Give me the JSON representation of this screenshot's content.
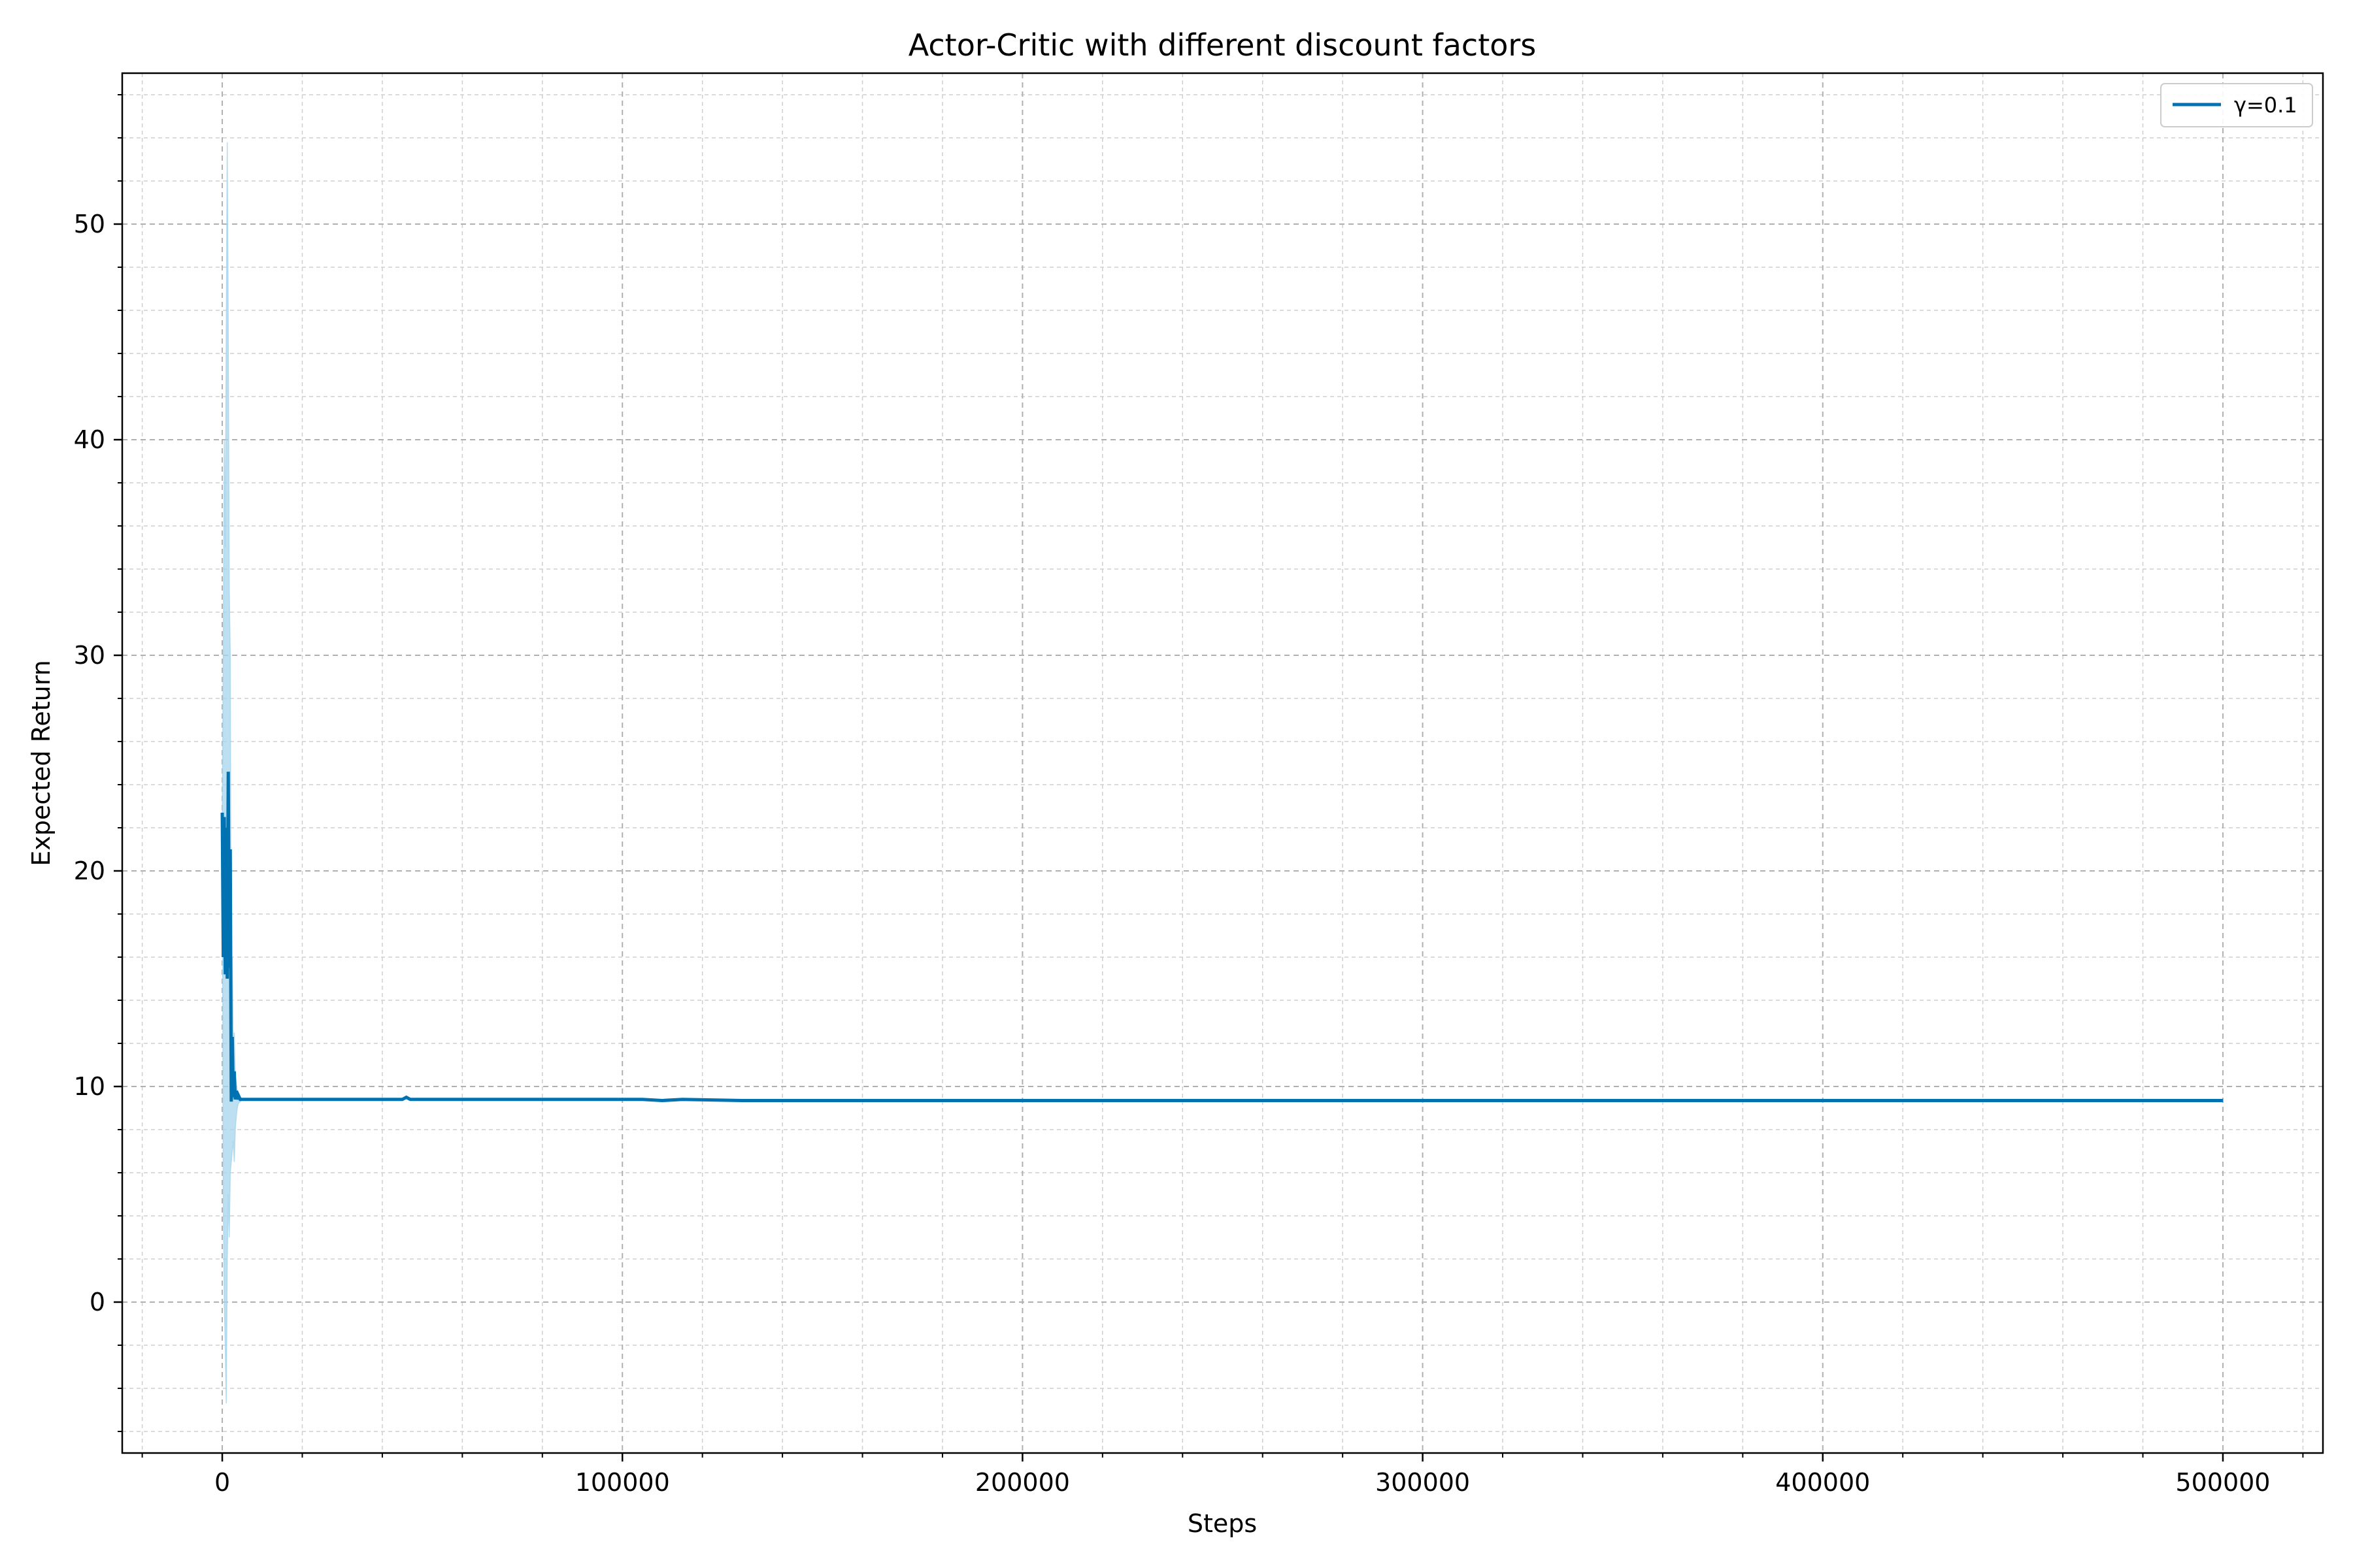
{
  "chart_data": {
    "type": "line",
    "title": "Actor-Critic with different discount factors",
    "xlabel": "Steps",
    "ylabel": "Expected Return",
    "xlim": [
      -25000,
      525000
    ],
    "ylim": [
      -7,
      57
    ],
    "x_ticks": [
      0,
      100000,
      200000,
      300000,
      400000,
      500000
    ],
    "y_ticks": [
      0,
      10,
      20,
      30,
      40,
      50
    ],
    "grid": true,
    "minor_grid": true,
    "legend_position": "top-right",
    "series": [
      {
        "name": "γ=0.1",
        "color": "#0072b2",
        "band_color": "#a6d4ec",
        "x": [
          0,
          250,
          500,
          750,
          1000,
          1250,
          1500,
          1750,
          2000,
          2250,
          2500,
          2750,
          3000,
          3250,
          3500,
          3750,
          4000,
          4500,
          5000,
          6000,
          8000,
          20000,
          40000,
          45000,
          46000,
          47000,
          60000,
          100000,
          105000,
          110000,
          115000,
          130000,
          200000,
          300000,
          400000,
          500000
        ],
        "y": [
          22.7,
          16.0,
          22.5,
          15.2,
          22.0,
          15.0,
          24.6,
          15.5,
          21.0,
          9.3,
          12.3,
          9.5,
          10.7,
          9.4,
          9.8,
          9.4,
          9.6,
          9.4,
          9.4,
          9.4,
          9.4,
          9.4,
          9.4,
          9.4,
          9.5,
          9.4,
          9.4,
          9.4,
          9.4,
          9.35,
          9.4,
          9.35,
          9.35,
          9.35,
          9.35,
          9.35
        ],
        "band_upper": [
          22.7,
          30.0,
          40.0,
          35.0,
          45.0,
          53.8,
          45.0,
          33.0,
          30.0,
          14.0,
          16.0,
          12.0,
          12.5,
          10.5,
          10.2,
          9.8,
          9.7,
          9.5,
          9.4,
          9.4,
          9.4,
          9.4,
          9.4,
          9.4,
          9.5,
          9.4,
          9.4,
          9.4,
          9.4,
          9.35,
          9.4,
          9.35,
          9.35,
          9.35,
          9.35,
          9.35
        ],
        "band_lower": [
          22.7,
          5.0,
          0.0,
          -2.0,
          -4.7,
          2.0,
          5.0,
          3.0,
          6.0,
          6.5,
          7.0,
          7.5,
          6.5,
          8.0,
          8.6,
          9.0,
          9.2,
          9.3,
          9.4,
          9.4,
          9.4,
          9.4,
          9.4,
          9.4,
          9.5,
          9.4,
          9.4,
          9.4,
          9.4,
          9.35,
          9.4,
          9.35,
          9.35,
          9.35,
          9.35,
          9.35
        ]
      }
    ]
  }
}
